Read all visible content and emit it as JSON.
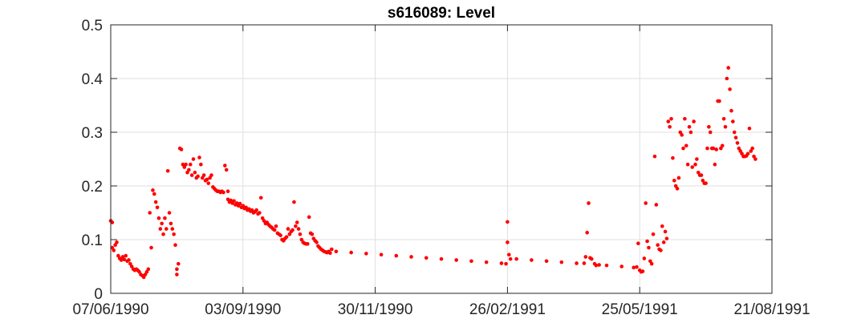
{
  "chart_data": {
    "type": "scatter",
    "title": "s616089: Level",
    "xlabel": "",
    "ylabel": "",
    "grid": true,
    "marker_color": "#ff0000",
    "x_ticks": [
      "07/06/1990",
      "03/09/1990",
      "30/11/1990",
      "26/02/1991",
      "25/05/1991",
      "21/08/1991"
    ],
    "x_tick_days": [
      0,
      88,
      176,
      264,
      352,
      440
    ],
    "xlim_days": [
      0,
      440
    ],
    "y_ticks": [
      "0",
      "0.1",
      "0.2",
      "0.3",
      "0.4",
      "0.5"
    ],
    "y_tick_values": [
      0,
      0.1,
      0.2,
      0.3,
      0.4,
      0.5
    ],
    "ylim": [
      0,
      0.5
    ],
    "series": [
      {
        "name": "Level",
        "points": [
          [
            0,
            0.135
          ],
          [
            1,
            0.132
          ],
          [
            1,
            0.085
          ],
          [
            2,
            0.08
          ],
          [
            3,
            0.09
          ],
          [
            4,
            0.095
          ],
          [
            5,
            0.07
          ],
          [
            6,
            0.065
          ],
          [
            7,
            0.062
          ],
          [
            8,
            0.068
          ],
          [
            9,
            0.063
          ],
          [
            10,
            0.07
          ],
          [
            11,
            0.06
          ],
          [
            12,
            0.062
          ],
          [
            13,
            0.055
          ],
          [
            14,
            0.05
          ],
          [
            15,
            0.045
          ],
          [
            16,
            0.043
          ],
          [
            17,
            0.045
          ],
          [
            18,
            0.043
          ],
          [
            19,
            0.04
          ],
          [
            20,
            0.035
          ],
          [
            21,
            0.033
          ],
          [
            22,
            0.03
          ],
          [
            23,
            0.035
          ],
          [
            24,
            0.04
          ],
          [
            25,
            0.045
          ],
          [
            26,
            0.15
          ],
          [
            27,
            0.085
          ],
          [
            28,
            0.192
          ],
          [
            29,
            0.185
          ],
          [
            30,
            0.17
          ],
          [
            31,
            0.16
          ],
          [
            32,
            0.14
          ],
          [
            33,
            0.12
          ],
          [
            34,
            0.13
          ],
          [
            35,
            0.11
          ],
          [
            36,
            0.14
          ],
          [
            37,
            0.12
          ],
          [
            38,
            0.228
          ],
          [
            39,
            0.15
          ],
          [
            40,
            0.13
          ],
          [
            41,
            0.12
          ],
          [
            42,
            0.11
          ],
          [
            43,
            0.09
          ],
          [
            44,
            0.045
          ],
          [
            44,
            0.035
          ],
          [
            45,
            0.055
          ],
          [
            46,
            0.27
          ],
          [
            47,
            0.268
          ],
          [
            48,
            0.24
          ],
          [
            49,
            0.235
          ],
          [
            50,
            0.24
          ],
          [
            51,
            0.225
          ],
          [
            52,
            0.23
          ],
          [
            53,
            0.24
          ],
          [
            54,
            0.22
          ],
          [
            55,
            0.25
          ],
          [
            56,
            0.225
          ],
          [
            57,
            0.215
          ],
          [
            58,
            0.218
          ],
          [
            59,
            0.253
          ],
          [
            60,
            0.24
          ],
          [
            61,
            0.215
          ],
          [
            62,
            0.22
          ],
          [
            63,
            0.21
          ],
          [
            64,
            0.212
          ],
          [
            65,
            0.205
          ],
          [
            66,
            0.215
          ],
          [
            67,
            0.22
          ],
          [
            68,
            0.198
          ],
          [
            69,
            0.195
          ],
          [
            70,
            0.192
          ],
          [
            71,
            0.19
          ],
          [
            72,
            0.19
          ],
          [
            73,
            0.188
          ],
          [
            74,
            0.19
          ],
          [
            75,
            0.188
          ],
          [
            76,
            0.238
          ],
          [
            77,
            0.23
          ],
          [
            78,
            0.19
          ],
          [
            78,
            0.175
          ],
          [
            79,
            0.17
          ],
          [
            80,
            0.173
          ],
          [
            81,
            0.168
          ],
          [
            82,
            0.172
          ],
          [
            83,
            0.165
          ],
          [
            84,
            0.168
          ],
          [
            85,
            0.163
          ],
          [
            86,
            0.167
          ],
          [
            87,
            0.16
          ],
          [
            88,
            0.163
          ],
          [
            89,
            0.158
          ],
          [
            90,
            0.16
          ],
          [
            91,
            0.155
          ],
          [
            92,
            0.157
          ],
          [
            93,
            0.153
          ],
          [
            94,
            0.155
          ],
          [
            95,
            0.15
          ],
          [
            96,
            0.152
          ],
          [
            97,
            0.155
          ],
          [
            98,
            0.148
          ],
          [
            99,
            0.15
          ],
          [
            100,
            0.178
          ],
          [
            101,
            0.14
          ],
          [
            102,
            0.135
          ],
          [
            103,
            0.13
          ],
          [
            104,
            0.132
          ],
          [
            105,
            0.128
          ],
          [
            106,
            0.125
          ],
          [
            107,
            0.123
          ],
          [
            108,
            0.12
          ],
          [
            109,
            0.118
          ],
          [
            110,
            0.125
          ],
          [
            111,
            0.112
          ],
          [
            112,
            0.11
          ],
          [
            113,
            0.108
          ],
          [
            114,
            0.1
          ],
          [
            115,
            0.098
          ],
          [
            116,
            0.102
          ],
          [
            117,
            0.105
          ],
          [
            118,
            0.12
          ],
          [
            119,
            0.11
          ],
          [
            120,
            0.115
          ],
          [
            121,
            0.118
          ],
          [
            122,
            0.17
          ],
          [
            123,
            0.125
          ],
          [
            124,
            0.132
          ],
          [
            125,
            0.12
          ],
          [
            126,
            0.11
          ],
          [
            127,
            0.1
          ],
          [
            128,
            0.095
          ],
          [
            129,
            0.093
          ],
          [
            130,
            0.092
          ],
          [
            131,
            0.092
          ],
          [
            132,
            0.142
          ],
          [
            133,
            0.112
          ],
          [
            134,
            0.11
          ],
          [
            135,
            0.102
          ],
          [
            136,
            0.098
          ],
          [
            137,
            0.095
          ],
          [
            138,
            0.088
          ],
          [
            139,
            0.085
          ],
          [
            140,
            0.082
          ],
          [
            141,
            0.08
          ],
          [
            142,
            0.078
          ],
          [
            143,
            0.077
          ],
          [
            144,
            0.076
          ],
          [
            145,
            0.078
          ],
          [
            146,
            0.075
          ],
          [
            147,
            0.082
          ],
          [
            150,
            0.078
          ],
          [
            160,
            0.076
          ],
          [
            170,
            0.074
          ],
          [
            180,
            0.072
          ],
          [
            190,
            0.07
          ],
          [
            200,
            0.068
          ],
          [
            210,
            0.066
          ],
          [
            220,
            0.064
          ],
          [
            230,
            0.062
          ],
          [
            240,
            0.06
          ],
          [
            250,
            0.058
          ],
          [
            260,
            0.056
          ],
          [
            263,
            0.055
          ],
          [
            264,
            0.095
          ],
          [
            264,
            0.133
          ],
          [
            265,
            0.072
          ],
          [
            266,
            0.064
          ],
          [
            270,
            0.064
          ],
          [
            280,
            0.062
          ],
          [
            290,
            0.06
          ],
          [
            300,
            0.058
          ],
          [
            310,
            0.056
          ],
          [
            315,
            0.056
          ],
          [
            316,
            0.068
          ],
          [
            317,
            0.113
          ],
          [
            318,
            0.168
          ],
          [
            319,
            0.066
          ],
          [
            320,
            0.064
          ],
          [
            322,
            0.055
          ],
          [
            323,
            0.052
          ],
          [
            325,
            0.053
          ],
          [
            330,
            0.052
          ],
          [
            340,
            0.05
          ],
          [
            348,
            0.048
          ],
          [
            350,
            0.049
          ],
          [
            351,
            0.093
          ],
          [
            352,
            0.043
          ],
          [
            353,
            0.04
          ],
          [
            354,
            0.041
          ],
          [
            355,
            0.065
          ],
          [
            356,
            0.168
          ],
          [
            357,
            0.097
          ],
          [
            358,
            0.085
          ],
          [
            359,
            0.06
          ],
          [
            360,
            0.055
          ],
          [
            361,
            0.11
          ],
          [
            362,
            0.255
          ],
          [
            363,
            0.165
          ],
          [
            364,
            0.09
          ],
          [
            365,
            0.082
          ],
          [
            366,
            0.08
          ],
          [
            367,
            0.125
          ],
          [
            368,
            0.095
          ],
          [
            369,
            0.115
          ],
          [
            370,
            0.102
          ],
          [
            371,
            0.32
          ],
          [
            372,
            0.31
          ],
          [
            373,
            0.325
          ],
          [
            374,
            0.252
          ],
          [
            375,
            0.21
          ],
          [
            376,
            0.2
          ],
          [
            377,
            0.195
          ],
          [
            378,
            0.215
          ],
          [
            379,
            0.3
          ],
          [
            380,
            0.295
          ],
          [
            381,
            0.27
          ],
          [
            382,
            0.325
          ],
          [
            383,
            0.275
          ],
          [
            384,
            0.24
          ],
          [
            385,
            0.31
          ],
          [
            386,
            0.3
          ],
          [
            387,
            0.235
          ],
          [
            388,
            0.32
          ],
          [
            389,
            0.24
          ],
          [
            390,
            0.25
          ],
          [
            391,
            0.225
          ],
          [
            392,
            0.22
          ],
          [
            393,
            0.22
          ],
          [
            394,
            0.21
          ],
          [
            395,
            0.205
          ],
          [
            396,
            0.205
          ],
          [
            397,
            0.27
          ],
          [
            398,
            0.31
          ],
          [
            399,
            0.3
          ],
          [
            400,
            0.27
          ],
          [
            401,
            0.27
          ],
          [
            402,
            0.24
          ],
          [
            403,
            0.268
          ],
          [
            404,
            0.358
          ],
          [
            405,
            0.358
          ],
          [
            406,
            0.27
          ],
          [
            407,
            0.275
          ],
          [
            408,
            0.325
          ],
          [
            409,
            0.31
          ],
          [
            410,
            0.4
          ],
          [
            411,
            0.42
          ],
          [
            412,
            0.38
          ],
          [
            413,
            0.34
          ],
          [
            414,
            0.32
          ],
          [
            415,
            0.3
          ],
          [
            416,
            0.29
          ],
          [
            417,
            0.28
          ],
          [
            418,
            0.27
          ],
          [
            419,
            0.265
          ],
          [
            420,
            0.26
          ],
          [
            421,
            0.255
          ],
          [
            422,
            0.255
          ],
          [
            423,
            0.256
          ],
          [
            424,
            0.26
          ],
          [
            425,
            0.307
          ],
          [
            426,
            0.265
          ],
          [
            427,
            0.27
          ],
          [
            428,
            0.255
          ],
          [
            429,
            0.25
          ]
        ]
      }
    ]
  }
}
